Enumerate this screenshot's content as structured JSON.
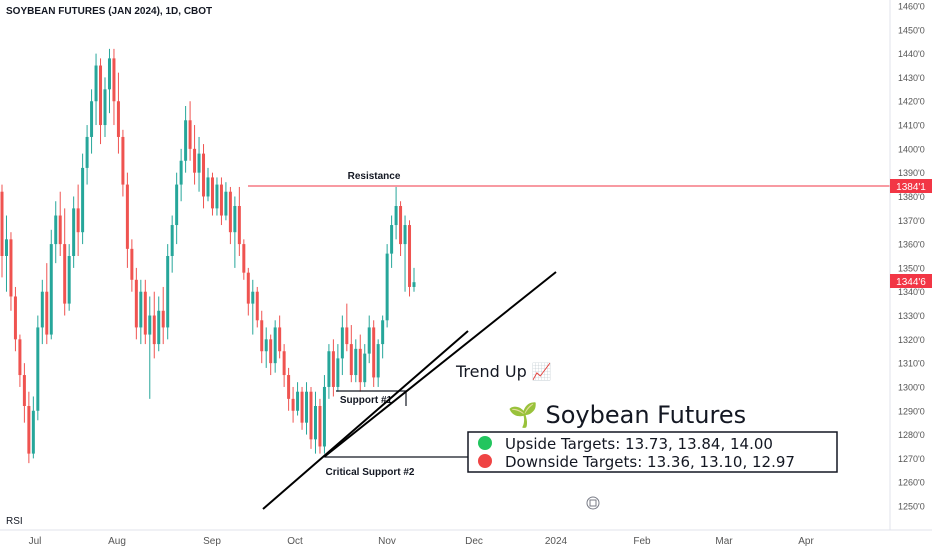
{
  "header": {
    "title": "SOYBEAN FUTURES (JAN 2024), 1D, CBOT"
  },
  "rsi_label": "RSI",
  "colors": {
    "up": "#26a69a",
    "down": "#ef5350",
    "line": "#f23645",
    "text": "#131722",
    "axis": "#555555"
  },
  "chart_data": {
    "type": "candlestick",
    "title": "SOYBEAN FUTURES (JAN 2024), 1D, CBOT",
    "ylim": [
      1250,
      1460
    ],
    "y_ticks": [
      "1460'0",
      "1450'0",
      "1440'0",
      "1430'0",
      "1420'0",
      "1410'0",
      "1400'0",
      "1390'0",
      "1380'0",
      "1370'0",
      "1360'0",
      "1350'0",
      "1340'0",
      "1330'0",
      "1320'0",
      "1310'0",
      "1300'0",
      "1290'0",
      "1280'0",
      "1270'0",
      "1260'0",
      "1250'0"
    ],
    "x_ticks": [
      "Jul",
      "Aug",
      "Sep",
      "Oct",
      "Nov",
      "Dec",
      "2024",
      "Feb",
      "Mar",
      "Apr"
    ],
    "price_labels": {
      "resistance": "1384'1",
      "last": "1344'6"
    },
    "candles": [
      [
        1382,
        1385,
        1346,
        1355
      ],
      [
        1355,
        1372,
        1340,
        1362
      ],
      [
        1362,
        1365,
        1332,
        1338
      ],
      [
        1338,
        1342,
        1315,
        1320
      ],
      [
        1320,
        1322,
        1300,
        1305
      ],
      [
        1305,
        1310,
        1285,
        1292
      ],
      [
        1292,
        1298,
        1268,
        1272
      ],
      [
        1272,
        1296,
        1270,
        1290
      ],
      [
        1290,
        1330,
        1286,
        1325
      ],
      [
        1325,
        1345,
        1318,
        1340
      ],
      [
        1340,
        1352,
        1318,
        1322
      ],
      [
        1322,
        1366,
        1320,
        1360
      ],
      [
        1360,
        1378,
        1352,
        1372
      ],
      [
        1372,
        1382,
        1355,
        1360
      ],
      [
        1360,
        1375,
        1330,
        1335
      ],
      [
        1335,
        1360,
        1332,
        1355
      ],
      [
        1355,
        1380,
        1350,
        1375
      ],
      [
        1375,
        1385,
        1355,
        1365
      ],
      [
        1365,
        1398,
        1360,
        1392
      ],
      [
        1392,
        1410,
        1385,
        1405
      ],
      [
        1405,
        1425,
        1398,
        1420
      ],
      [
        1420,
        1440,
        1410,
        1435
      ],
      [
        1435,
        1438,
        1402,
        1410
      ],
      [
        1410,
        1430,
        1405,
        1425
      ],
      [
        1425,
        1442,
        1415,
        1438
      ],
      [
        1438,
        1442,
        1410,
        1420
      ],
      [
        1420,
        1432,
        1398,
        1405
      ],
      [
        1405,
        1408,
        1380,
        1385
      ],
      [
        1385,
        1390,
        1350,
        1358
      ],
      [
        1358,
        1362,
        1340,
        1345
      ],
      [
        1345,
        1350,
        1320,
        1325
      ],
      [
        1325,
        1345,
        1318,
        1340
      ],
      [
        1340,
        1345,
        1318,
        1322
      ],
      [
        1322,
        1338,
        1295,
        1330
      ],
      [
        1330,
        1340,
        1312,
        1318
      ],
      [
        1318,
        1338,
        1315,
        1332
      ],
      [
        1332,
        1342,
        1318,
        1325
      ],
      [
        1325,
        1360,
        1320,
        1355
      ],
      [
        1355,
        1372,
        1348,
        1368
      ],
      [
        1368,
        1390,
        1360,
        1385
      ],
      [
        1385,
        1400,
        1378,
        1395
      ],
      [
        1395,
        1418,
        1390,
        1412
      ],
      [
        1412,
        1420,
        1395,
        1400
      ],
      [
        1400,
        1410,
        1385,
        1390
      ],
      [
        1390,
        1405,
        1382,
        1398
      ],
      [
        1398,
        1402,
        1375,
        1380
      ],
      [
        1380,
        1392,
        1378,
        1388
      ],
      [
        1388,
        1390,
        1372,
        1375
      ],
      [
        1375,
        1388,
        1372,
        1385
      ],
      [
        1385,
        1388,
        1368,
        1372
      ],
      [
        1372,
        1386,
        1370,
        1382
      ],
      [
        1382,
        1384,
        1360,
        1365
      ],
      [
        1365,
        1380,
        1350,
        1376
      ],
      [
        1376,
        1384,
        1355,
        1360
      ],
      [
        1360,
        1362,
        1345,
        1348
      ],
      [
        1348,
        1350,
        1330,
        1335
      ],
      [
        1335,
        1345,
        1322,
        1340
      ],
      [
        1340,
        1342,
        1325,
        1328
      ],
      [
        1328,
        1332,
        1310,
        1315
      ],
      [
        1315,
        1325,
        1308,
        1320
      ],
      [
        1320,
        1322,
        1305,
        1310
      ],
      [
        1310,
        1328,
        1306,
        1325
      ],
      [
        1325,
        1330,
        1312,
        1315
      ],
      [
        1315,
        1318,
        1300,
        1305
      ],
      [
        1305,
        1308,
        1290,
        1295
      ],
      [
        1295,
        1300,
        1285,
        1290
      ],
      [
        1290,
        1302,
        1288,
        1298
      ],
      [
        1298,
        1300,
        1282,
        1285
      ],
      [
        1285,
        1302,
        1280,
        1298
      ],
      [
        1298,
        1300,
        1274,
        1278
      ],
      [
        1278,
        1298,
        1272,
        1292
      ],
      [
        1292,
        1295,
        1272,
        1275
      ],
      [
        1275,
        1305,
        1272,
        1300
      ],
      [
        1300,
        1318,
        1295,
        1315
      ],
      [
        1315,
        1320,
        1296,
        1300
      ],
      [
        1300,
        1318,
        1298,
        1312
      ],
      [
        1312,
        1330,
        1305,
        1325
      ],
      [
        1325,
        1335,
        1315,
        1318
      ],
      [
        1318,
        1326,
        1302,
        1305
      ],
      [
        1305,
        1320,
        1302,
        1316
      ],
      [
        1316,
        1322,
        1298,
        1302
      ],
      [
        1302,
        1318,
        1300,
        1314
      ],
      [
        1314,
        1330,
        1310,
        1325
      ],
      [
        1325,
        1328,
        1300,
        1304
      ],
      [
        1304,
        1320,
        1300,
        1318
      ],
      [
        1318,
        1330,
        1312,
        1328
      ],
      [
        1328,
        1360,
        1325,
        1356
      ],
      [
        1356,
        1372,
        1350,
        1368
      ],
      [
        1368,
        1384,
        1362,
        1376
      ],
      [
        1376,
        1378,
        1355,
        1360
      ],
      [
        1360,
        1372,
        1340,
        1368
      ],
      [
        1368,
        1370,
        1338,
        1342
      ],
      [
        1342,
        1350,
        1340,
        1344
      ]
    ],
    "annotations": {
      "resistance": "Resistance",
      "support1": "Support #1",
      "critical_support": "Critical Support #2",
      "trend": "Trend Up 📈",
      "headline": "🌱 Soybean Futures",
      "upside": "Upside Targets: 13.73, 13.84, 14.00",
      "downside": "Downside Targets: 13.36, 13.10, 12.97"
    }
  }
}
